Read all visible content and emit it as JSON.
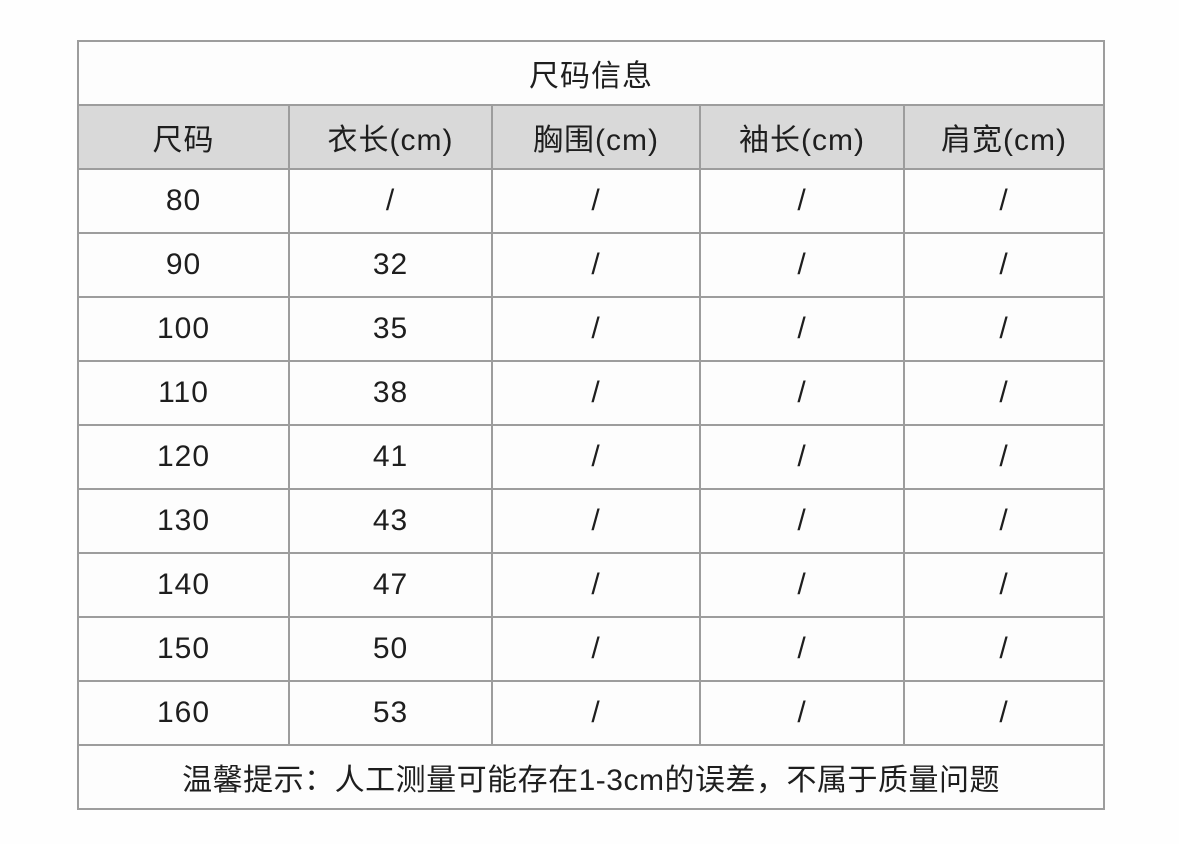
{
  "chart_data": {
    "type": "table",
    "title": "尺码信息",
    "columns": [
      "尺码",
      "衣长(cm)",
      "胸围(cm)",
      "袖长(cm)",
      "肩宽(cm)"
    ],
    "rows": [
      [
        "80",
        "/",
        "/",
        "/",
        "/"
      ],
      [
        "90",
        "32",
        "/",
        "/",
        "/"
      ],
      [
        "100",
        "35",
        "/",
        "/",
        "/"
      ],
      [
        "110",
        "38",
        "/",
        "/",
        "/"
      ],
      [
        "120",
        "41",
        "/",
        "/",
        "/"
      ],
      [
        "130",
        "43",
        "/",
        "/",
        "/"
      ],
      [
        "140",
        "47",
        "/",
        "/",
        "/"
      ],
      [
        "150",
        "50",
        "/",
        "/",
        "/"
      ],
      [
        "160",
        "53",
        "/",
        "/",
        "/"
      ]
    ],
    "note": "温馨提示：人工测量可能存在1-3cm的误差，不属于质量问题",
    "layout": {
      "legend": "none",
      "grid": "full-borders",
      "header_background": "#d9d9d9",
      "border_color": "#9d9d9d",
      "cell_background": "#fdfdfd",
      "text_color": "#1e1e1e"
    }
  }
}
